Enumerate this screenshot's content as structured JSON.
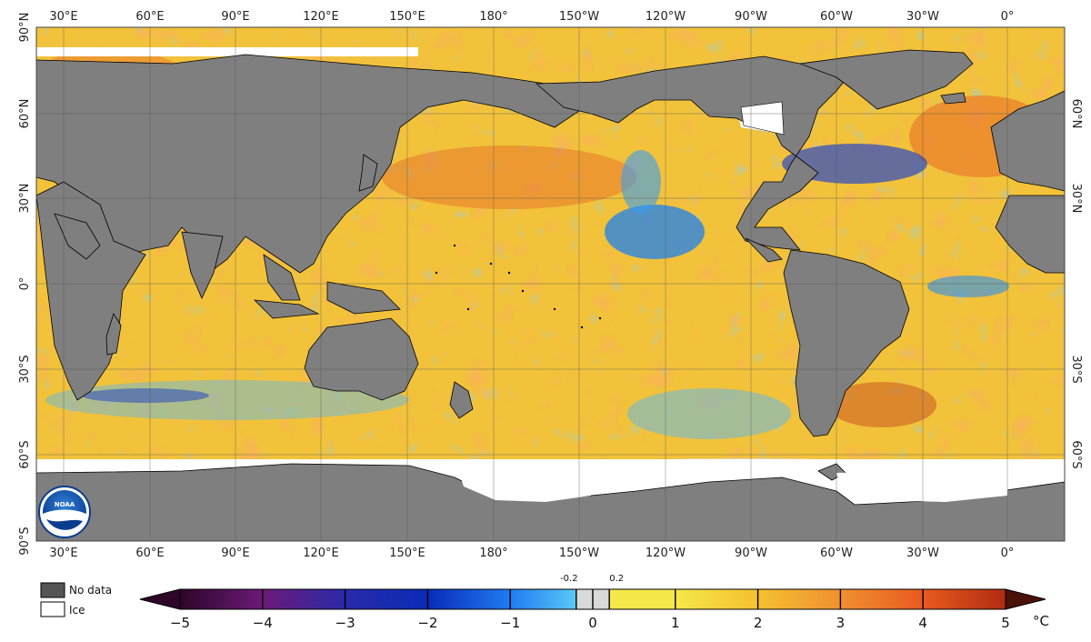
{
  "map": {
    "top_lon_labels": [
      "30°E",
      "60°E",
      "90°E",
      "120°E",
      "150°E",
      "180°",
      "150°W",
      "120°W",
      "90°W",
      "60°W",
      "30°W",
      "0°"
    ],
    "bottom_lon_labels": [
      "30°E",
      "60°E",
      "90°E",
      "120°E",
      "150°E",
      "180°",
      "150°W",
      "120°W",
      "90°W",
      "60°W",
      "30°W",
      "0°"
    ],
    "left_lat_labels": [
      "90°N",
      "60°N",
      "30°N",
      "0°",
      "30°S",
      "60°S",
      "90°S"
    ],
    "right_lat_labels": [
      "60°N",
      "30°N",
      "30°S",
      "60°S"
    ],
    "logo_text": "NOAA"
  },
  "legend": {
    "no_data_label": "No data",
    "ice_label": "Ice",
    "no_data_color": "#555555",
    "ice_color": "#ffffff"
  },
  "colorbar": {
    "unit": "°C",
    "tick_labels": [
      "−5",
      "−4",
      "−3",
      "−2",
      "−1",
      "0",
      "1",
      "2",
      "3",
      "4",
      "5"
    ],
    "small_labels": [
      "-0.2",
      "0.2"
    ],
    "colors": {
      "neg5": "#2d0628",
      "neg4": "#6b1a78",
      "neg3": "#2a2aa8",
      "neg2": "#0a2bb8",
      "neg1": "#1f7cf0",
      "neg0": "#5ac8f5",
      "neutral": "#d9d9d9",
      "pos0": "#f5e84a",
      "pos1": "#f5c030",
      "pos2": "#f09030",
      "pos3": "#e85a20",
      "pos4": "#b02c10",
      "pos5": "#4a1208"
    }
  }
}
